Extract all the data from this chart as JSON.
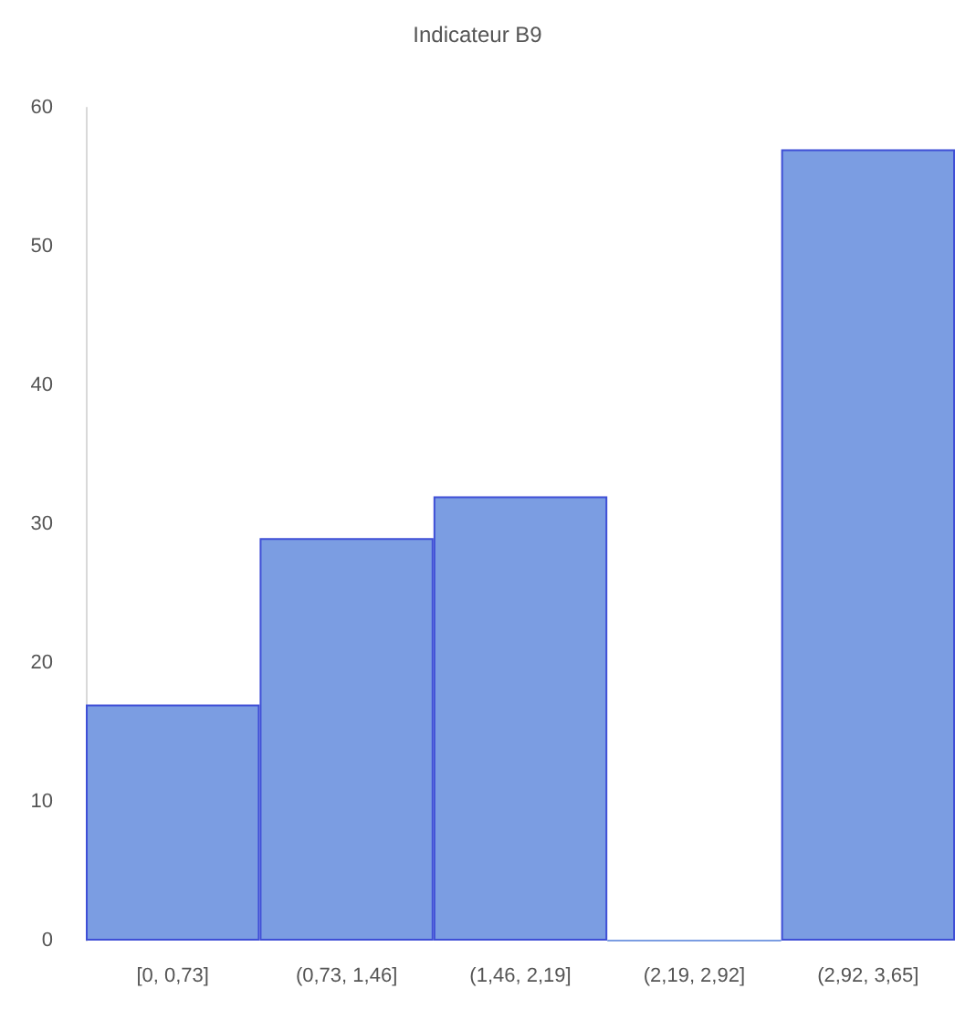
{
  "chart_data": {
    "type": "bar",
    "title": "Indicateur B9",
    "categories": [
      "[0, 0,73]",
      "(0,73, 1,46]",
      "(1,46, 2,19]",
      "(2,19, 2,92]",
      "(2,92, 3,65]"
    ],
    "values": [
      17,
      29,
      32,
      0,
      57
    ],
    "color": "#7b9de2",
    "ylim": [
      0,
      60
    ],
    "yticks": [
      0,
      10,
      20,
      30,
      40,
      50,
      60
    ],
    "grid": false
  }
}
